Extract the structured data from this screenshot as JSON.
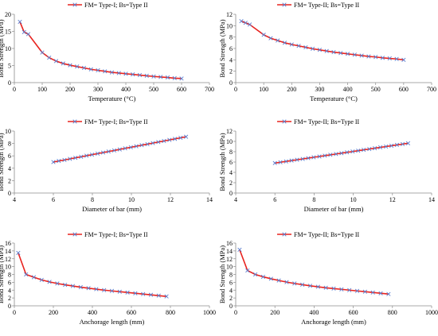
{
  "figure": {
    "background": "#ffffff"
  },
  "style": {
    "line_color": "#e8231f",
    "marker_color": "#5b7fd0",
    "axis_color": "#8c8c8c"
  },
  "chart_data": [
    {
      "type": "line",
      "title": "",
      "legend": [
        "FM= Type-I; Bs=Type II"
      ],
      "legend_position": "top",
      "xlabel": "Temperature (°C)",
      "ylabel": "Bond Strength (MPa)",
      "xlim": [
        0,
        700
      ],
      "ylim": [
        0,
        20
      ],
      "xticks": [
        "0",
        "100",
        "200",
        "300",
        "400",
        "500",
        "600",
        "700"
      ],
      "yticks": [
        "0",
        "5",
        "10",
        "15",
        "20"
      ],
      "grid": false,
      "series": [
        {
          "name": "FM= Type-I; Bs=Type II",
          "x": [
            20,
            35,
            50,
            100,
            125,
            150,
            175,
            200,
            225,
            250,
            275,
            300,
            325,
            350,
            375,
            400,
            425,
            450,
            475,
            500,
            525,
            550,
            575,
            600
          ],
          "y": [
            17.8,
            14.8,
            14.2,
            8.8,
            7.3,
            6.3,
            5.6,
            5.1,
            4.7,
            4.3,
            3.9,
            3.6,
            3.3,
            3.0,
            2.8,
            2.6,
            2.4,
            2.2,
            2.0,
            1.8,
            1.65,
            1.5,
            1.3,
            1.2
          ]
        }
      ]
    },
    {
      "type": "line",
      "title": "",
      "legend": [
        "FM= Type-II; Bs=Type II"
      ],
      "legend_position": "top",
      "xlabel": "Temperature (°C)",
      "ylabel": "Bond Strength (MPa)",
      "xlim": [
        0,
        700
      ],
      "ylim": [
        0,
        12
      ],
      "xticks": [
        "0",
        "100",
        "200",
        "300",
        "400",
        "500",
        "600",
        "700"
      ],
      "yticks": [
        "0",
        "2",
        "4",
        "6",
        "8",
        "10",
        "12"
      ],
      "grid": false,
      "series": [
        {
          "name": "FM= Type-II; Bs=Type II",
          "x": [
            20,
            35,
            50,
            100,
            125,
            150,
            175,
            200,
            225,
            250,
            275,
            300,
            325,
            350,
            375,
            400,
            425,
            450,
            475,
            500,
            525,
            550,
            575,
            600
          ],
          "y": [
            10.8,
            10.5,
            10.2,
            8.4,
            7.8,
            7.4,
            7.0,
            6.7,
            6.45,
            6.2,
            5.95,
            5.75,
            5.55,
            5.35,
            5.2,
            5.05,
            4.9,
            4.75,
            4.6,
            4.5,
            4.35,
            4.25,
            4.15,
            4.0
          ]
        }
      ]
    },
    {
      "type": "line",
      "title": "",
      "legend": [
        "FM= Type-I; Bs=Type II"
      ],
      "legend_position": "top",
      "xlabel": "Diameter of bar (mm)",
      "ylabel": "Bond Strength (MPa)",
      "xlim": [
        4,
        14
      ],
      "ylim": [
        0,
        10
      ],
      "xticks": [
        "4",
        "6",
        "8",
        "10",
        "12",
        "14"
      ],
      "yticks": [
        "0",
        "2",
        "4",
        "6",
        "8",
        "10"
      ],
      "grid": false,
      "series": [
        {
          "name": "FM= Type-I; Bs=Type II",
          "x": [
            6.0,
            6.28,
            6.57,
            6.85,
            7.13,
            7.42,
            7.7,
            7.98,
            8.27,
            8.55,
            8.83,
            9.12,
            9.4,
            9.68,
            9.97,
            10.25,
            10.53,
            10.82,
            11.1,
            11.38,
            11.67,
            11.95,
            12.23,
            12.52,
            12.8
          ],
          "y": [
            5.0,
            5.17,
            5.34,
            5.51,
            5.68,
            5.85,
            6.02,
            6.19,
            6.36,
            6.53,
            6.7,
            6.87,
            7.04,
            7.21,
            7.38,
            7.55,
            7.72,
            7.89,
            8.06,
            8.23,
            8.4,
            8.57,
            8.74,
            8.91,
            9.08
          ]
        }
      ]
    },
    {
      "type": "line",
      "title": "",
      "legend": [
        "FM= Type-II; Bs=Type II"
      ],
      "legend_position": "top",
      "xlabel": "Diameter of bar (mm)",
      "ylabel": "Bond Strength (MPa)",
      "xlim": [
        4,
        14
      ],
      "ylim": [
        0,
        12
      ],
      "xticks": [
        "4",
        "6",
        "8",
        "10",
        "12",
        "14"
      ],
      "yticks": [
        "0",
        "2",
        "4",
        "6",
        "8",
        "10",
        "12"
      ],
      "grid": false,
      "series": [
        {
          "name": "FM= Type-II; Bs=Type II",
          "x": [
            6.0,
            6.28,
            6.57,
            6.85,
            7.13,
            7.42,
            7.7,
            7.98,
            8.27,
            8.55,
            8.83,
            9.12,
            9.4,
            9.68,
            9.97,
            10.25,
            10.53,
            10.82,
            11.1,
            11.38,
            11.67,
            11.95,
            12.23,
            12.52,
            12.8
          ],
          "y": [
            5.8,
            5.96,
            6.12,
            6.28,
            6.44,
            6.6,
            6.76,
            6.92,
            7.08,
            7.24,
            7.4,
            7.56,
            7.72,
            7.88,
            8.04,
            8.2,
            8.36,
            8.52,
            8.68,
            8.84,
            9.0,
            9.16,
            9.32,
            9.48,
            9.64
          ]
        }
      ]
    },
    {
      "type": "line",
      "title": "",
      "legend": [
        "FM= Type-I; Bs=Type II"
      ],
      "legend_position": "top",
      "xlabel": "Anchorage length (mm)",
      "ylabel": "Bond Strength (MPa)",
      "xlim": [
        0,
        1000
      ],
      "ylim": [
        0,
        16
      ],
      "xticks": [
        "0",
        "200",
        "400",
        "600",
        "800",
        "1000"
      ],
      "yticks": [
        "0",
        "2",
        "4",
        "6",
        "8",
        "10",
        "12",
        "14",
        "16"
      ],
      "grid": false,
      "series": [
        {
          "name": "FM= Type-I; Bs=Type II",
          "x": [
            20,
            60,
            100,
            140,
            180,
            220,
            260,
            300,
            340,
            380,
            420,
            460,
            500,
            540,
            580,
            620,
            660,
            700,
            740,
            780
          ],
          "y": [
            13.5,
            8.0,
            7.3,
            6.6,
            6.1,
            5.7,
            5.35,
            5.05,
            4.75,
            4.5,
            4.25,
            4.0,
            3.8,
            3.6,
            3.4,
            3.2,
            3.0,
            2.8,
            2.6,
            2.4
          ]
        }
      ]
    },
    {
      "type": "line",
      "title": "",
      "legend": [
        "FM= Type-II; Bs=Type II"
      ],
      "legend_position": "top",
      "xlabel": "Anchorage length (mm)",
      "ylabel": "Bond Strength (MPa)",
      "xlim": [
        0,
        1000
      ],
      "ylim": [
        0,
        16
      ],
      "xticks": [
        "0",
        "200",
        "400",
        "600",
        "800",
        "1000"
      ],
      "yticks": [
        "0",
        "2",
        "4",
        "6",
        "8",
        "10",
        "12",
        "14",
        "16"
      ],
      "grid": false,
      "series": [
        {
          "name": "FM= Type-II; Bs=Type II",
          "x": [
            20,
            60,
            100,
            140,
            180,
            220,
            260,
            300,
            340,
            380,
            420,
            460,
            500,
            540,
            580,
            620,
            660,
            700,
            740,
            780
          ],
          "y": [
            14.3,
            9.0,
            8.0,
            7.4,
            6.9,
            6.45,
            6.05,
            5.7,
            5.4,
            5.1,
            4.85,
            4.6,
            4.4,
            4.2,
            4.0,
            3.8,
            3.6,
            3.4,
            3.2,
            3.0
          ]
        }
      ]
    }
  ]
}
